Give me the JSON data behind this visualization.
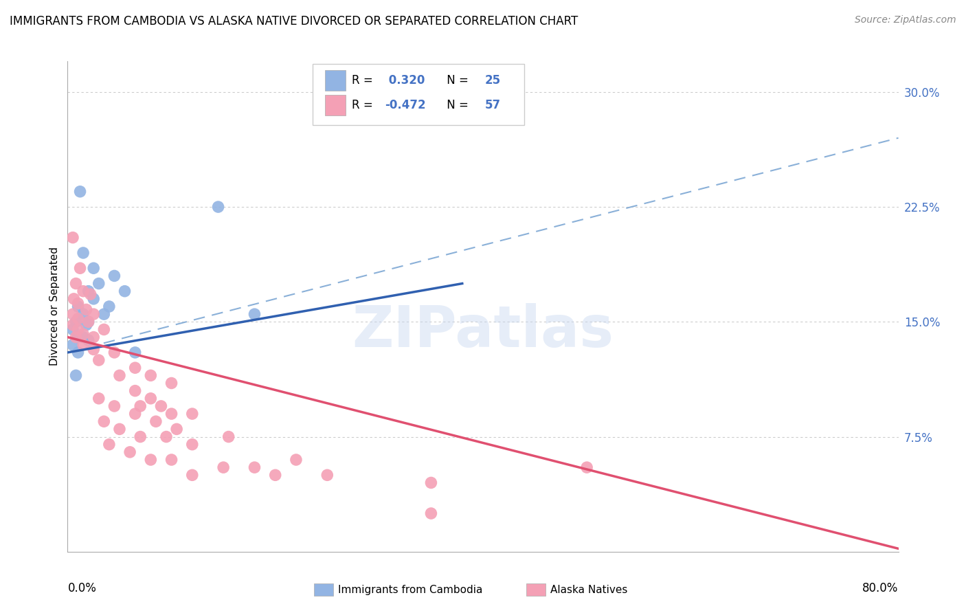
{
  "title": "IMMIGRANTS FROM CAMBODIA VS ALASKA NATIVE DIVORCED OR SEPARATED CORRELATION CHART",
  "source": "Source: ZipAtlas.com",
  "ylabel": "Divorced or Separated",
  "xmin": 0.0,
  "xmax": 80.0,
  "ymin": 0.0,
  "ymax": 32.0,
  "watermark": "ZIPatlas",
  "blue_color": "#92b4e3",
  "pink_color": "#f4a0b5",
  "blue_line_color": "#3060b0",
  "pink_line_color": "#e05070",
  "blue_dashed_color": "#8ab0d8",
  "blue_scatter": [
    [
      1.2,
      23.5
    ],
    [
      14.5,
      22.5
    ],
    [
      1.5,
      19.5
    ],
    [
      2.5,
      18.5
    ],
    [
      4.5,
      18.0
    ],
    [
      2.0,
      17.0
    ],
    [
      3.0,
      17.5
    ],
    [
      5.5,
      17.0
    ],
    [
      1.0,
      16.0
    ],
    [
      2.5,
      16.5
    ],
    [
      3.5,
      15.5
    ],
    [
      4.0,
      16.0
    ],
    [
      1.5,
      15.5
    ],
    [
      2.0,
      15.0
    ],
    [
      0.8,
      15.0
    ],
    [
      1.8,
      14.8
    ],
    [
      0.5,
      14.5
    ],
    [
      1.0,
      14.0
    ],
    [
      1.5,
      14.0
    ],
    [
      2.0,
      13.8
    ],
    [
      0.5,
      13.5
    ],
    [
      1.0,
      13.0
    ],
    [
      6.5,
      13.0
    ],
    [
      18.0,
      15.5
    ],
    [
      0.8,
      11.5
    ]
  ],
  "pink_scatter": [
    [
      0.5,
      20.5
    ],
    [
      1.2,
      18.5
    ],
    [
      0.8,
      17.5
    ],
    [
      1.5,
      17.0
    ],
    [
      2.2,
      16.8
    ],
    [
      0.6,
      16.5
    ],
    [
      1.0,
      16.2
    ],
    [
      1.8,
      15.8
    ],
    [
      2.5,
      15.5
    ],
    [
      0.5,
      15.5
    ],
    [
      1.0,
      15.2
    ],
    [
      2.0,
      15.0
    ],
    [
      0.5,
      14.8
    ],
    [
      1.0,
      14.5
    ],
    [
      1.5,
      14.2
    ],
    [
      2.5,
      14.0
    ],
    [
      3.5,
      14.5
    ],
    [
      0.8,
      14.0
    ],
    [
      1.5,
      13.5
    ],
    [
      2.5,
      13.2
    ],
    [
      3.0,
      12.5
    ],
    [
      4.5,
      13.0
    ],
    [
      6.5,
      12.0
    ],
    [
      8.0,
      11.5
    ],
    [
      10.0,
      11.0
    ],
    [
      5.0,
      11.5
    ],
    [
      6.5,
      10.5
    ],
    [
      8.0,
      10.0
    ],
    [
      7.0,
      9.5
    ],
    [
      9.0,
      9.5
    ],
    [
      10.0,
      9.0
    ],
    [
      12.0,
      9.0
    ],
    [
      3.0,
      10.0
    ],
    [
      4.5,
      9.5
    ],
    [
      6.5,
      9.0
    ],
    [
      8.5,
      8.5
    ],
    [
      10.5,
      8.0
    ],
    [
      3.5,
      8.5
    ],
    [
      5.0,
      8.0
    ],
    [
      7.0,
      7.5
    ],
    [
      9.5,
      7.5
    ],
    [
      12.0,
      7.0
    ],
    [
      4.0,
      7.0
    ],
    [
      6.0,
      6.5
    ],
    [
      8.0,
      6.0
    ],
    [
      10.0,
      6.0
    ],
    [
      15.5,
      7.5
    ],
    [
      22.0,
      6.0
    ],
    [
      15.0,
      5.5
    ],
    [
      18.0,
      5.5
    ],
    [
      20.0,
      5.0
    ],
    [
      12.0,
      5.0
    ],
    [
      25.0,
      5.0
    ],
    [
      35.0,
      4.5
    ],
    [
      50.0,
      5.5
    ],
    [
      35.0,
      2.5
    ]
  ],
  "blue_line_x0": 0.0,
  "blue_line_x1": 38.0,
  "blue_line_y0": 13.0,
  "blue_line_y1": 17.5,
  "pink_line_x0": 0.0,
  "pink_line_x1": 80.0,
  "pink_line_y0": 14.0,
  "pink_line_y1": 0.2,
  "dashed_line_x0": 0.0,
  "dashed_line_x1": 80.0,
  "dashed_line_y0": 13.0,
  "dashed_line_y1": 27.0
}
